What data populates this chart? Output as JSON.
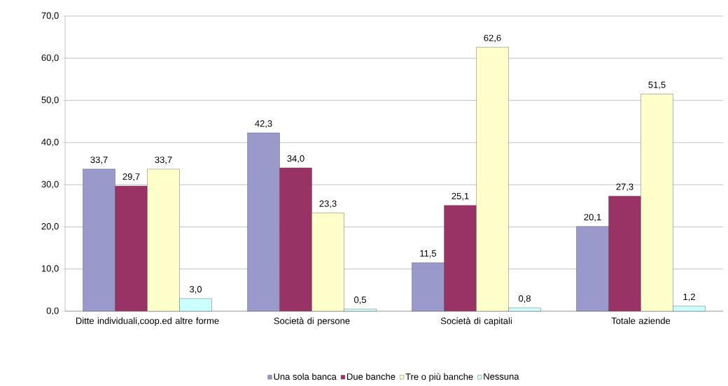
{
  "chart_data": {
    "type": "bar",
    "categories": [
      "Ditte individuali,coop.ed altre forme",
      "Società di persone",
      "Società di capitali",
      "Totale aziende"
    ],
    "series": [
      {
        "name": "Una sola banca",
        "color": "#9999cc",
        "values": [
          33.7,
          42.3,
          11.5,
          20.1
        ],
        "value_labels": [
          "33,7",
          "42,3",
          "11,5",
          "20,1"
        ]
      },
      {
        "name": "Due banche",
        "color": "#993366",
        "values": [
          29.7,
          34.0,
          25.1,
          27.3
        ],
        "value_labels": [
          "29,7",
          "34,0",
          "25,1",
          "27,3"
        ]
      },
      {
        "name": "Tre o più banche",
        "color": "#ffffcc",
        "values": [
          33.7,
          23.3,
          62.6,
          51.5
        ],
        "value_labels": [
          "33,7",
          "23,3",
          "62,6",
          "51,5"
        ]
      },
      {
        "name": "Nessuna",
        "color": "#ccffff",
        "values": [
          3.0,
          0.5,
          0.8,
          1.2
        ],
        "value_labels": [
          "3,0",
          "0,5",
          "0,8",
          "1,2"
        ]
      }
    ],
    "ylim": [
      0,
      70
    ],
    "yticks": [
      {
        "value": 0,
        "label": "0,0"
      },
      {
        "value": 10,
        "label": "10,0"
      },
      {
        "value": 20,
        "label": "20,0"
      },
      {
        "value": 30,
        "label": "30,0"
      },
      {
        "value": 40,
        "label": "40,0"
      },
      {
        "value": 50,
        "label": "50,0"
      },
      {
        "value": 60,
        "label": "60,0"
      },
      {
        "value": 70,
        "label": "70,0"
      }
    ],
    "grid": "y",
    "legend": "bottom"
  }
}
